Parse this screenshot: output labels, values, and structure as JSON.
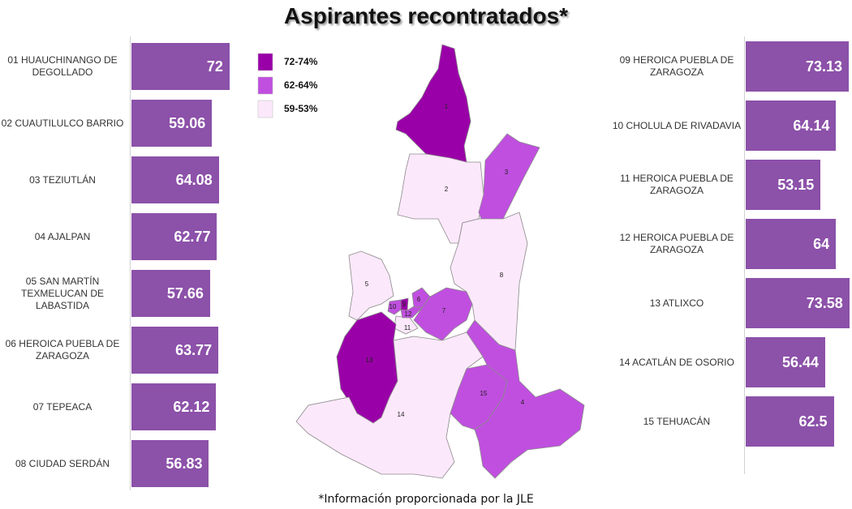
{
  "title": "Aspirantes recontratados*",
  "footnote": "*Información proporcionada por la JLE",
  "chart_data": [
    {
      "type": "bar",
      "orientation": "horizontal",
      "color": "#8c51a9",
      "xlim": [
        0,
        75
      ],
      "categories": [
        "01 HUAUCHINANGO DE DEGOLLADO",
        "02 CUAUTILULCO BARRIO",
        "03 TEZIUTLÁN",
        "04 AJALPAN",
        "05 SAN MARTÍN TEXMELUCAN DE LABASTIDA",
        "06 HEROICA PUEBLA DE ZARAGOZA",
        "07 TEPEACA",
        "08 CIUDAD SERDÁN"
      ],
      "values": [
        72,
        59.06,
        64.08,
        62.77,
        57.66,
        63.77,
        62.12,
        56.83
      ]
    },
    {
      "type": "bar",
      "orientation": "horizontal",
      "color": "#8c51a9",
      "xlim": [
        0,
        76
      ],
      "categories": [
        "09 HEROICA PUEBLA DE ZARAGOZA",
        "10 CHOLULA DE RIVADAVIA",
        "11 HEROICA PUEBLA DE ZARAGOZA",
        "12 HEROICA PUEBLA DE ZARAGOZA",
        "13 ATLIXCO",
        "14 ACATLÁN DE OSORIO",
        "15 TEHUACÁN"
      ],
      "values": [
        73.13,
        64.14,
        53.15,
        64,
        73.58,
        56.44,
        62.5
      ]
    }
  ],
  "map": {
    "legend": [
      {
        "label": "72-74%",
        "color": "#9a00a8"
      },
      {
        "label": "62-64%",
        "color": "#c04fe0"
      },
      {
        "label": "59-53%",
        "color": "#fce8fb"
      }
    ],
    "districts": [
      {
        "label": "1",
        "color": "#9a00a8"
      },
      {
        "label": "2",
        "color": "#fce8fb"
      },
      {
        "label": "3",
        "color": "#c04fe0"
      },
      {
        "label": "4",
        "color": "#c04fe0"
      },
      {
        "label": "5",
        "color": "#fce8fb"
      },
      {
        "label": "6",
        "color": "#c04fe0"
      },
      {
        "label": "7",
        "color": "#c04fe0"
      },
      {
        "label": "8",
        "color": "#fce8fb"
      },
      {
        "label": "9",
        "color": "#9a00a8"
      },
      {
        "label": "10",
        "color": "#c04fe0"
      },
      {
        "label": "11",
        "color": "#fce8fb"
      },
      {
        "label": "12",
        "color": "#c04fe0"
      },
      {
        "label": "13",
        "color": "#9a00a8"
      },
      {
        "label": "14",
        "color": "#fce8fb"
      },
      {
        "label": "15",
        "color": "#c04fe0"
      }
    ]
  }
}
